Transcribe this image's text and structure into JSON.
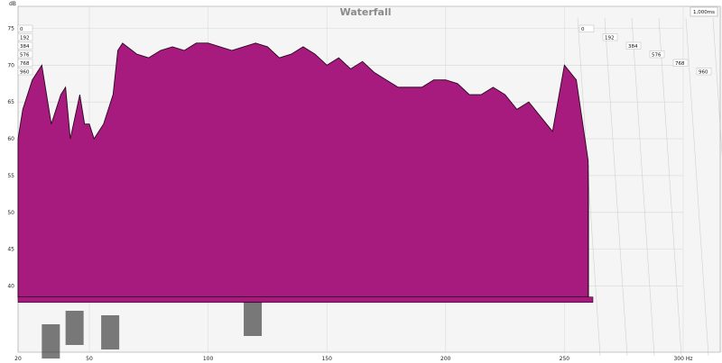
{
  "chart_data": {
    "type": "area",
    "title": "Waterfall",
    "ylabel": "dB",
    "time_readout": "1,000ms",
    "x_unit": "Hz",
    "x_ticks": [
      20,
      50,
      100,
      150,
      200,
      250,
      300
    ],
    "x_tick_labels": [
      "20",
      "50",
      "100",
      "150",
      "200",
      "250",
      "300 Hz"
    ],
    "y_ticks": [
      40,
      45,
      50,
      55,
      60,
      65,
      70,
      75
    ],
    "ylim": [
      31,
      78
    ],
    "xlim": [
      20,
      300
    ],
    "time_slices_ms": [
      0,
      192,
      384,
      576,
      768,
      960
    ],
    "time_labels": [
      "0",
      "192",
      "384",
      "576",
      "768",
      "960"
    ],
    "front_slice": {
      "x": [
        20,
        22,
        24,
        26,
        28,
        30,
        32,
        34,
        36,
        38,
        40,
        42,
        44,
        46,
        48,
        50,
        52,
        54,
        56,
        58,
        60,
        62,
        64,
        66,
        68,
        70,
        75,
        80,
        85,
        90,
        95,
        100,
        105,
        110,
        115,
        120,
        125,
        130,
        135,
        140,
        145,
        150,
        155,
        160,
        165,
        170,
        175,
        180,
        185,
        190,
        195,
        200,
        205,
        210,
        215,
        220,
        225,
        230,
        235,
        240,
        245,
        250,
        255,
        260
      ],
      "y": [
        60,
        64,
        66,
        68,
        69,
        70,
        66,
        62,
        64,
        66,
        67,
        60,
        63,
        66,
        62,
        62,
        60,
        61,
        62,
        64,
        66,
        72,
        73,
        72.5,
        72,
        71.5,
        71,
        72,
        72.5,
        72,
        73,
        73,
        72.5,
        72,
        72.5,
        73,
        72.5,
        71,
        71.5,
        72.5,
        71.5,
        70,
        71,
        69.5,
        70.5,
        69,
        68,
        67,
        67,
        67,
        68,
        68,
        67.5,
        66,
        66,
        67,
        66,
        64,
        65,
        63,
        61,
        70,
        68,
        57
      ]
    },
    "floor_db": 38.5,
    "series_color": "#a71a7e",
    "grid": true
  }
}
